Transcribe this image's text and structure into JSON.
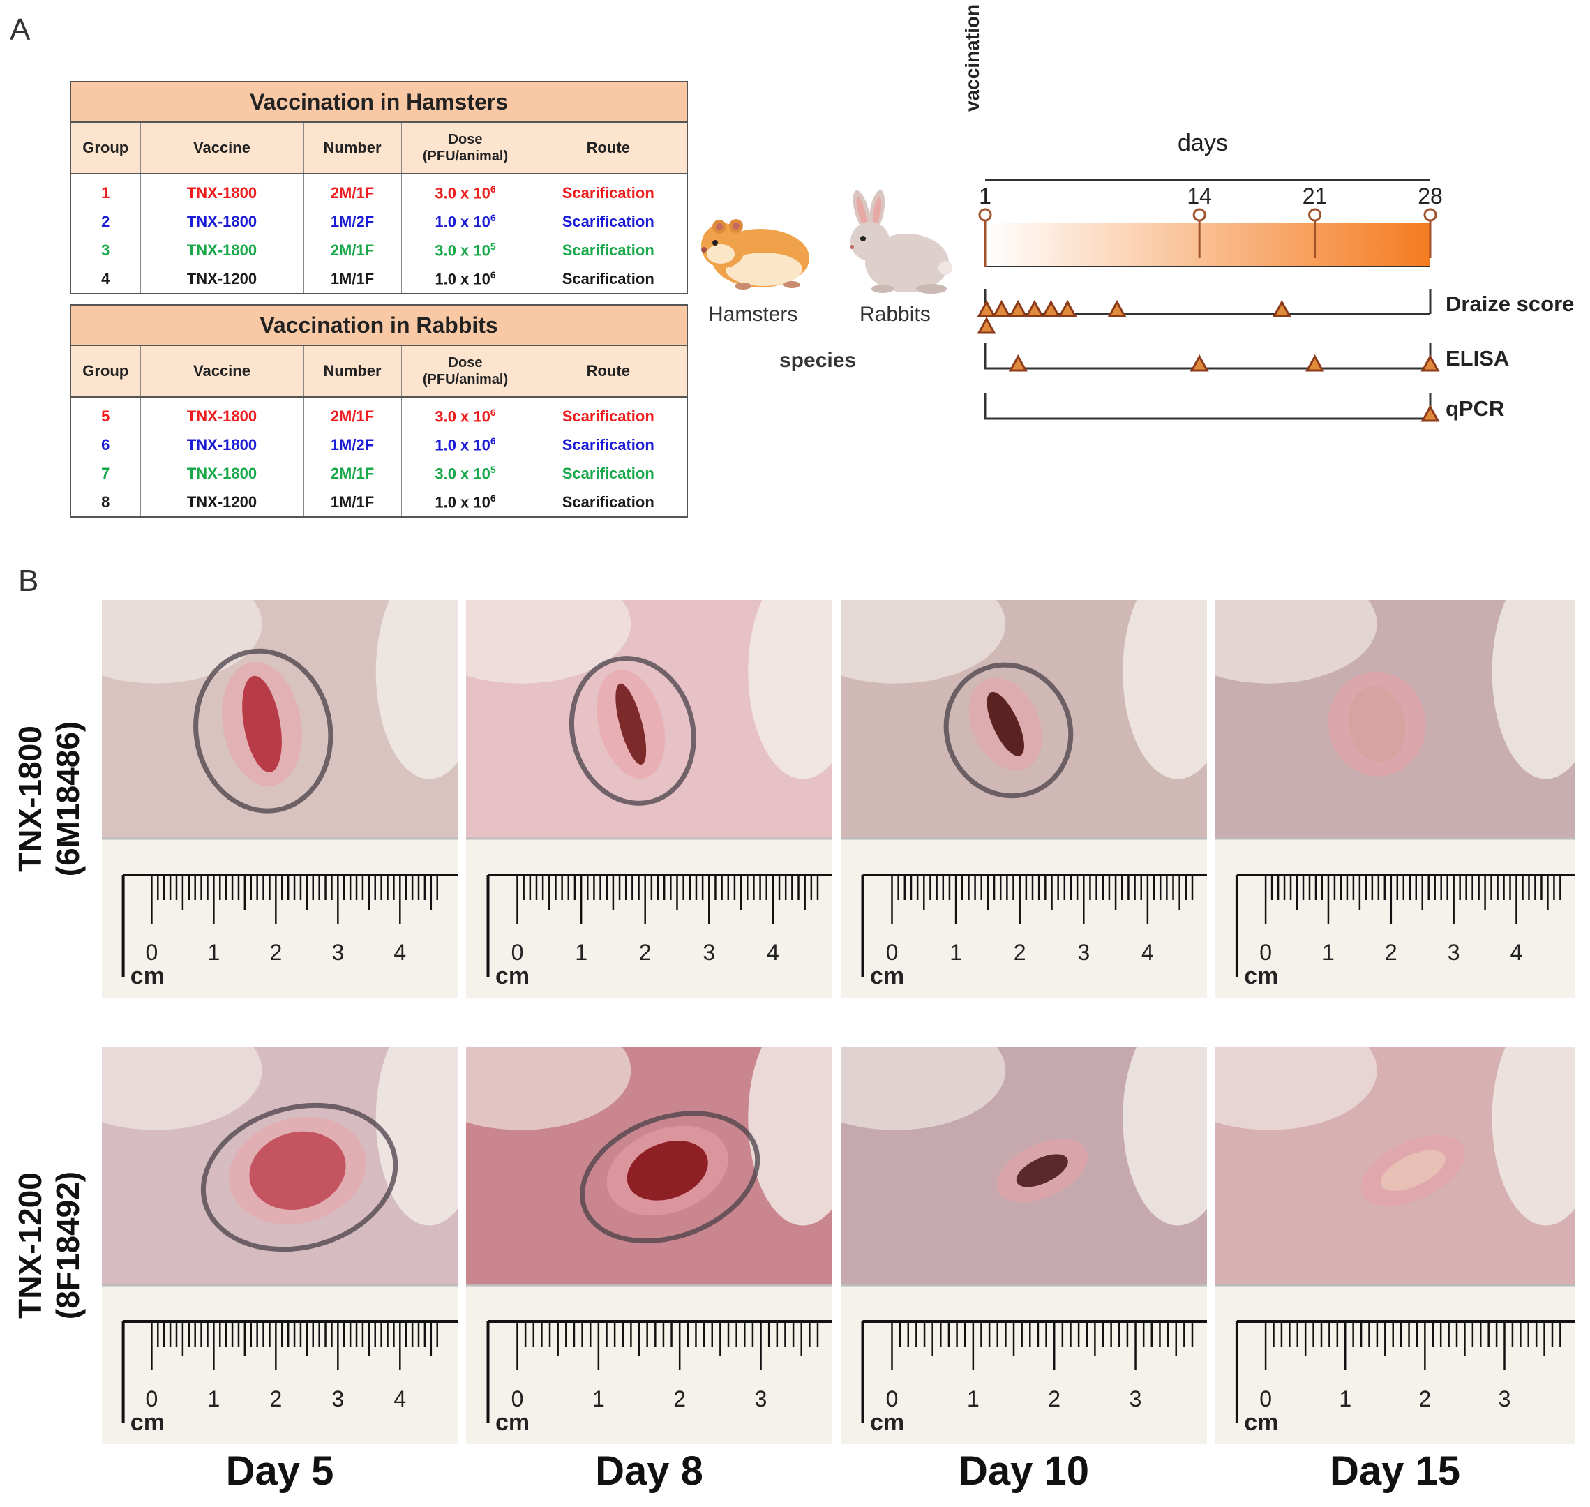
{
  "panel_a": {
    "label": "A"
  },
  "panel_b": {
    "label": "B"
  },
  "hamster_table": {
    "title": "Vaccination in Hamsters",
    "headers": [
      "Group",
      "Vaccine",
      "Number",
      "Dose",
      "(PFU/animal)",
      "Route"
    ],
    "rows": [
      {
        "group": "1",
        "vaccine": "TNX-1800",
        "number": "2M/1F",
        "dose_base": "3.0 x 10",
        "dose_exp": "6",
        "route": "Scarification",
        "color": "#ee1c1c"
      },
      {
        "group": "2",
        "vaccine": "TNX-1800",
        "number": "1M/2F",
        "dose_base": "1.0 x 10",
        "dose_exp": "6",
        "route": "Scarification",
        "color": "#1b1bd6"
      },
      {
        "group": "3",
        "vaccine": "TNX-1800",
        "number": "2M/1F",
        "dose_base": "3.0 x 10",
        "dose_exp": "5",
        "route": "Scarification",
        "color": "#18a84a"
      },
      {
        "group": "4",
        "vaccine": "TNX-1200",
        "number": "1M/1F",
        "dose_base": "1.0 x 10",
        "dose_exp": "6",
        "route": "Scarification",
        "color": "#1a1a1a"
      }
    ]
  },
  "rabbit_table": {
    "title": "Vaccination in Rabbits",
    "headers": [
      "Group",
      "Vaccine",
      "Number",
      "Dose",
      "(PFU/animal)",
      "Route"
    ],
    "rows": [
      {
        "group": "5",
        "vaccine": "TNX-1800",
        "number": "2M/1F",
        "dose_base": "3.0 x 10",
        "dose_exp": "6",
        "route": "Scarification",
        "color": "#ee1c1c"
      },
      {
        "group": "6",
        "vaccine": "TNX-1800",
        "number": "1M/2F",
        "dose_base": "1.0 x 10",
        "dose_exp": "6",
        "route": "Scarification",
        "color": "#1b1bd6"
      },
      {
        "group": "7",
        "vaccine": "TNX-1800",
        "number": "2M/1F",
        "dose_base": "3.0 x 10",
        "dose_exp": "5",
        "route": "Scarification",
        "color": "#18a84a"
      },
      {
        "group": "8",
        "vaccine": "TNX-1200",
        "number": "1M/1F",
        "dose_base": "1.0 x 10",
        "dose_exp": "6",
        "route": "Scarification",
        "color": "#1a1a1a"
      }
    ]
  },
  "species": {
    "hamsters": "Hamsters",
    "rabbits": "Rabbits",
    "caption": "species"
  },
  "timeline": {
    "vaccination_label": "vaccination",
    "axis_label": "days",
    "day_ticks": [
      "1",
      "14",
      "21",
      "28"
    ],
    "tracks": [
      {
        "name": "Draize score",
        "sample_days": [
          1,
          1,
          2,
          3,
          4,
          5,
          6,
          9,
          19
        ]
      },
      {
        "name": "ELISA",
        "sample_days": [
          3,
          14,
          21,
          28
        ]
      },
      {
        "name": "qPCR",
        "sample_days": [
          28
        ]
      }
    ]
  },
  "photos": {
    "rows": [
      {
        "label_line1": "TNX-1800",
        "label_line2": "(6M18486)"
      },
      {
        "label_line1": "TNX-1200",
        "label_line2": "(8F18492)"
      }
    ],
    "days": [
      "Day 5",
      "Day 8",
      "Day 10",
      "Day 15"
    ],
    "ruler_unit": "cm",
    "ruler_numbers_row1": [
      [
        "0",
        "1",
        "2",
        "3",
        "4"
      ],
      [
        "0",
        "1",
        "2",
        "3",
        "4"
      ],
      [
        "0",
        "1",
        "2",
        "3",
        "4"
      ],
      [
        "0",
        "1",
        "2",
        "3",
        "4"
      ]
    ],
    "ruler_numbers_row2": [
      [
        "0",
        "1",
        "2",
        "3",
        "4"
      ],
      [
        "0",
        "1",
        "2",
        "3"
      ],
      [
        "0",
        "1",
        "2",
        "3"
      ],
      [
        "0",
        "1",
        "2",
        "3"
      ]
    ]
  },
  "colors": {
    "header_orange": "#f9c9a6",
    "timeline_orange": "#f47b20",
    "marker_fill": "#e08a3c",
    "marker_stroke": "#8b3a1a"
  }
}
